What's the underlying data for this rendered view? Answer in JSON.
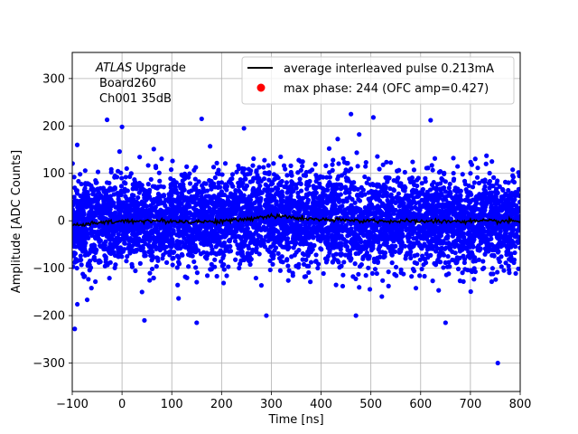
{
  "chart_data": {
    "type": "scatter",
    "xlabel": "Time [ns]",
    "ylabel": "Amplitude [ADC Counts]",
    "xlim": [
      -100,
      800
    ],
    "ylim": [
      -360,
      355
    ],
    "x_ticks": [
      -100,
      0,
      100,
      200,
      300,
      400,
      500,
      600,
      700,
      800
    ],
    "y_ticks": [
      -300,
      -200,
      -100,
      0,
      100,
      200,
      300
    ],
    "grid": true,
    "legend_position": "top-right",
    "annotation": {
      "atlas": "ATLAS",
      "upgrade": "Upgrade",
      "board": "Board260",
      "channel": "Ch001 35dB"
    },
    "series": [
      {
        "name": "average interleaved pulse 0.213mA",
        "type": "line",
        "color": "#000000",
        "x": [
          -100,
          -50,
          0,
          50,
          100,
          150,
          200,
          250,
          280,
          300,
          320,
          350,
          400,
          450,
          500,
          550,
          600,
          650,
          700,
          750,
          800
        ],
        "y": [
          -10,
          -5,
          -1,
          0,
          -1,
          -2,
          -1,
          3,
          8,
          10,
          9,
          6,
          2,
          1,
          0,
          -1,
          -1,
          -1,
          -1,
          -1,
          -1
        ]
      },
      {
        "name": "max phase: 244 (OFC amp=0.427)",
        "type": "scatter",
        "color": "#ff0000",
        "x": [],
        "y": []
      },
      {
        "name": "",
        "type": "scatter",
        "color": "#0000ff",
        "distribution": {
          "mean": 0,
          "sd": 48,
          "count": 5200
        },
        "outliers": [
          {
            "x": -90,
            "y": 160
          },
          {
            "x": -30,
            "y": 213
          },
          {
            "x": 0,
            "y": 198
          },
          {
            "x": 160,
            "y": 215
          },
          {
            "x": 245,
            "y": 195
          },
          {
            "x": 460,
            "y": 225
          },
          {
            "x": 505,
            "y": 218
          },
          {
            "x": 620,
            "y": 212
          },
          {
            "x": -95,
            "y": -228
          },
          {
            "x": 45,
            "y": -210
          },
          {
            "x": 150,
            "y": -215
          },
          {
            "x": 290,
            "y": -200
          },
          {
            "x": 470,
            "y": -200
          },
          {
            "x": 650,
            "y": -215
          },
          {
            "x": 755,
            "y": -300
          }
        ]
      }
    ]
  }
}
